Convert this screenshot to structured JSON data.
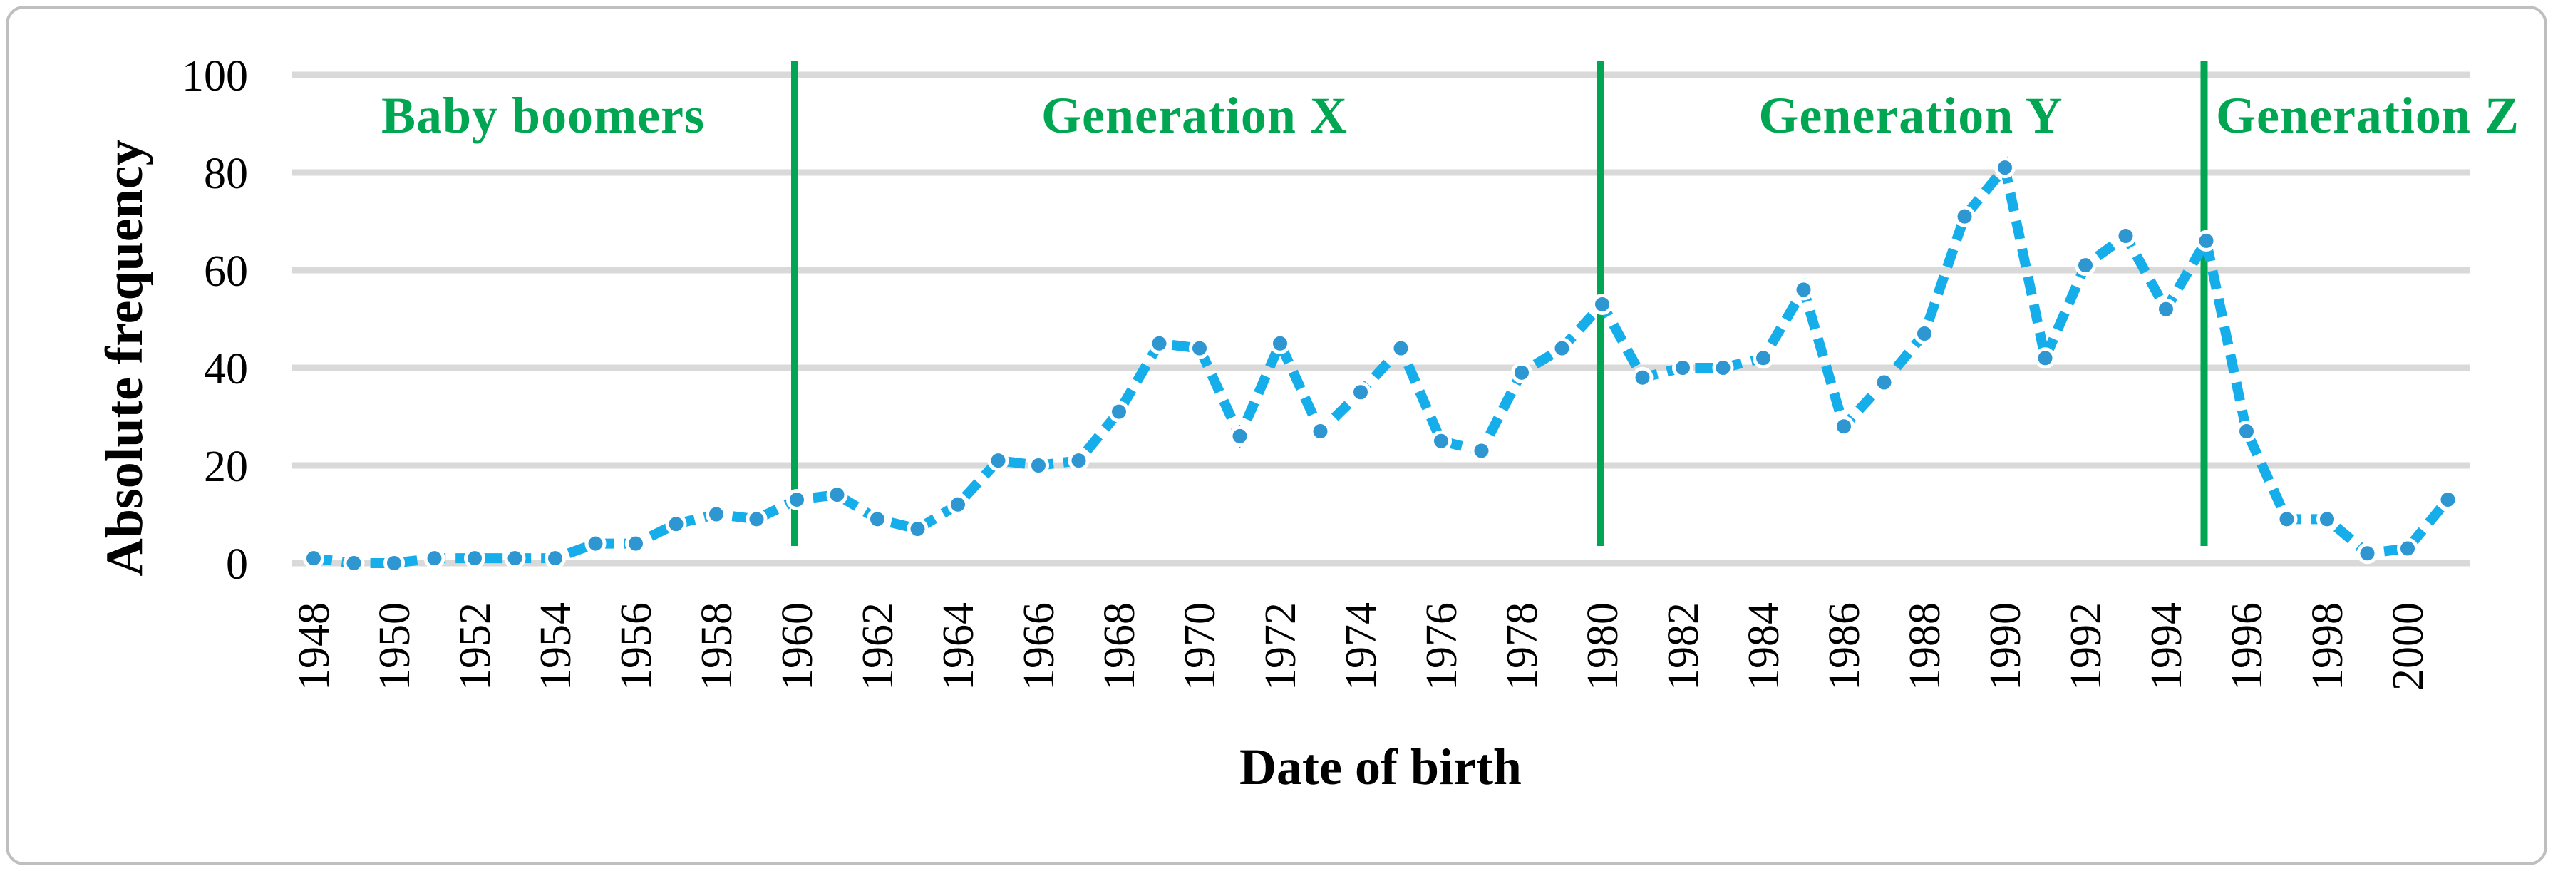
{
  "colors": {
    "line": "#15aeeb",
    "marker": "#2e96d1",
    "marker_outline": "#ffffff",
    "divider": "#00a651",
    "label_green": "#00a651",
    "gridline": "#d9d9d9",
    "text": "#000000",
    "border": "#bfbfbf"
  },
  "chart_data": {
    "type": "line",
    "title": "",
    "xlabel": "Date of birth",
    "ylabel": "Absolute frequency",
    "x": [
      1948,
      1949,
      1950,
      1951,
      1952,
      1953,
      1954,
      1955,
      1956,
      1957,
      1958,
      1959,
      1960,
      1961,
      1962,
      1963,
      1964,
      1965,
      1966,
      1967,
      1968,
      1969,
      1970,
      1971,
      1972,
      1973,
      1974,
      1975,
      1976,
      1977,
      1978,
      1979,
      1980,
      1981,
      1982,
      1983,
      1984,
      1985,
      1986,
      1987,
      1988,
      1989,
      1990,
      1991,
      1992,
      1993,
      1994,
      1995,
      1996,
      1997,
      1998,
      1999,
      2000,
      2001
    ],
    "values": [
      1,
      0,
      0,
      1,
      1,
      1,
      1,
      4,
      4,
      8,
      10,
      9,
      13,
      14,
      9,
      7,
      12,
      21,
      20,
      21,
      31,
      45,
      44,
      26,
      45,
      27,
      35,
      44,
      25,
      23,
      39,
      44,
      53,
      38,
      40,
      40,
      42,
      56,
      28,
      37,
      47,
      71,
      81,
      42,
      61,
      67,
      52,
      66,
      27,
      9,
      9,
      2,
      3,
      13
    ],
    "x_tick_labels": [
      "1948",
      "1950",
      "1952",
      "1954",
      "1956",
      "1958",
      "1960",
      "1962",
      "1964",
      "1966",
      "1968",
      "1970",
      "1972",
      "1974",
      "1976",
      "1978",
      "1980",
      "1982",
      "1984",
      "1986",
      "1988",
      "1990",
      "1992",
      "1994",
      "1996",
      "1998",
      "2000"
    ],
    "yticks": [
      0,
      20,
      40,
      60,
      80,
      100
    ],
    "ylim": [
      0,
      100
    ],
    "grid": true,
    "legend": "none",
    "line_style": "dashed-with-round-markers",
    "dividers": [
      1960,
      1980,
      1995
    ],
    "generation_labels": [
      {
        "label": "Baby boomers"
      },
      {
        "label": "Generation X"
      },
      {
        "label": "Generation Y"
      },
      {
        "label": "Generation Z"
      }
    ]
  }
}
